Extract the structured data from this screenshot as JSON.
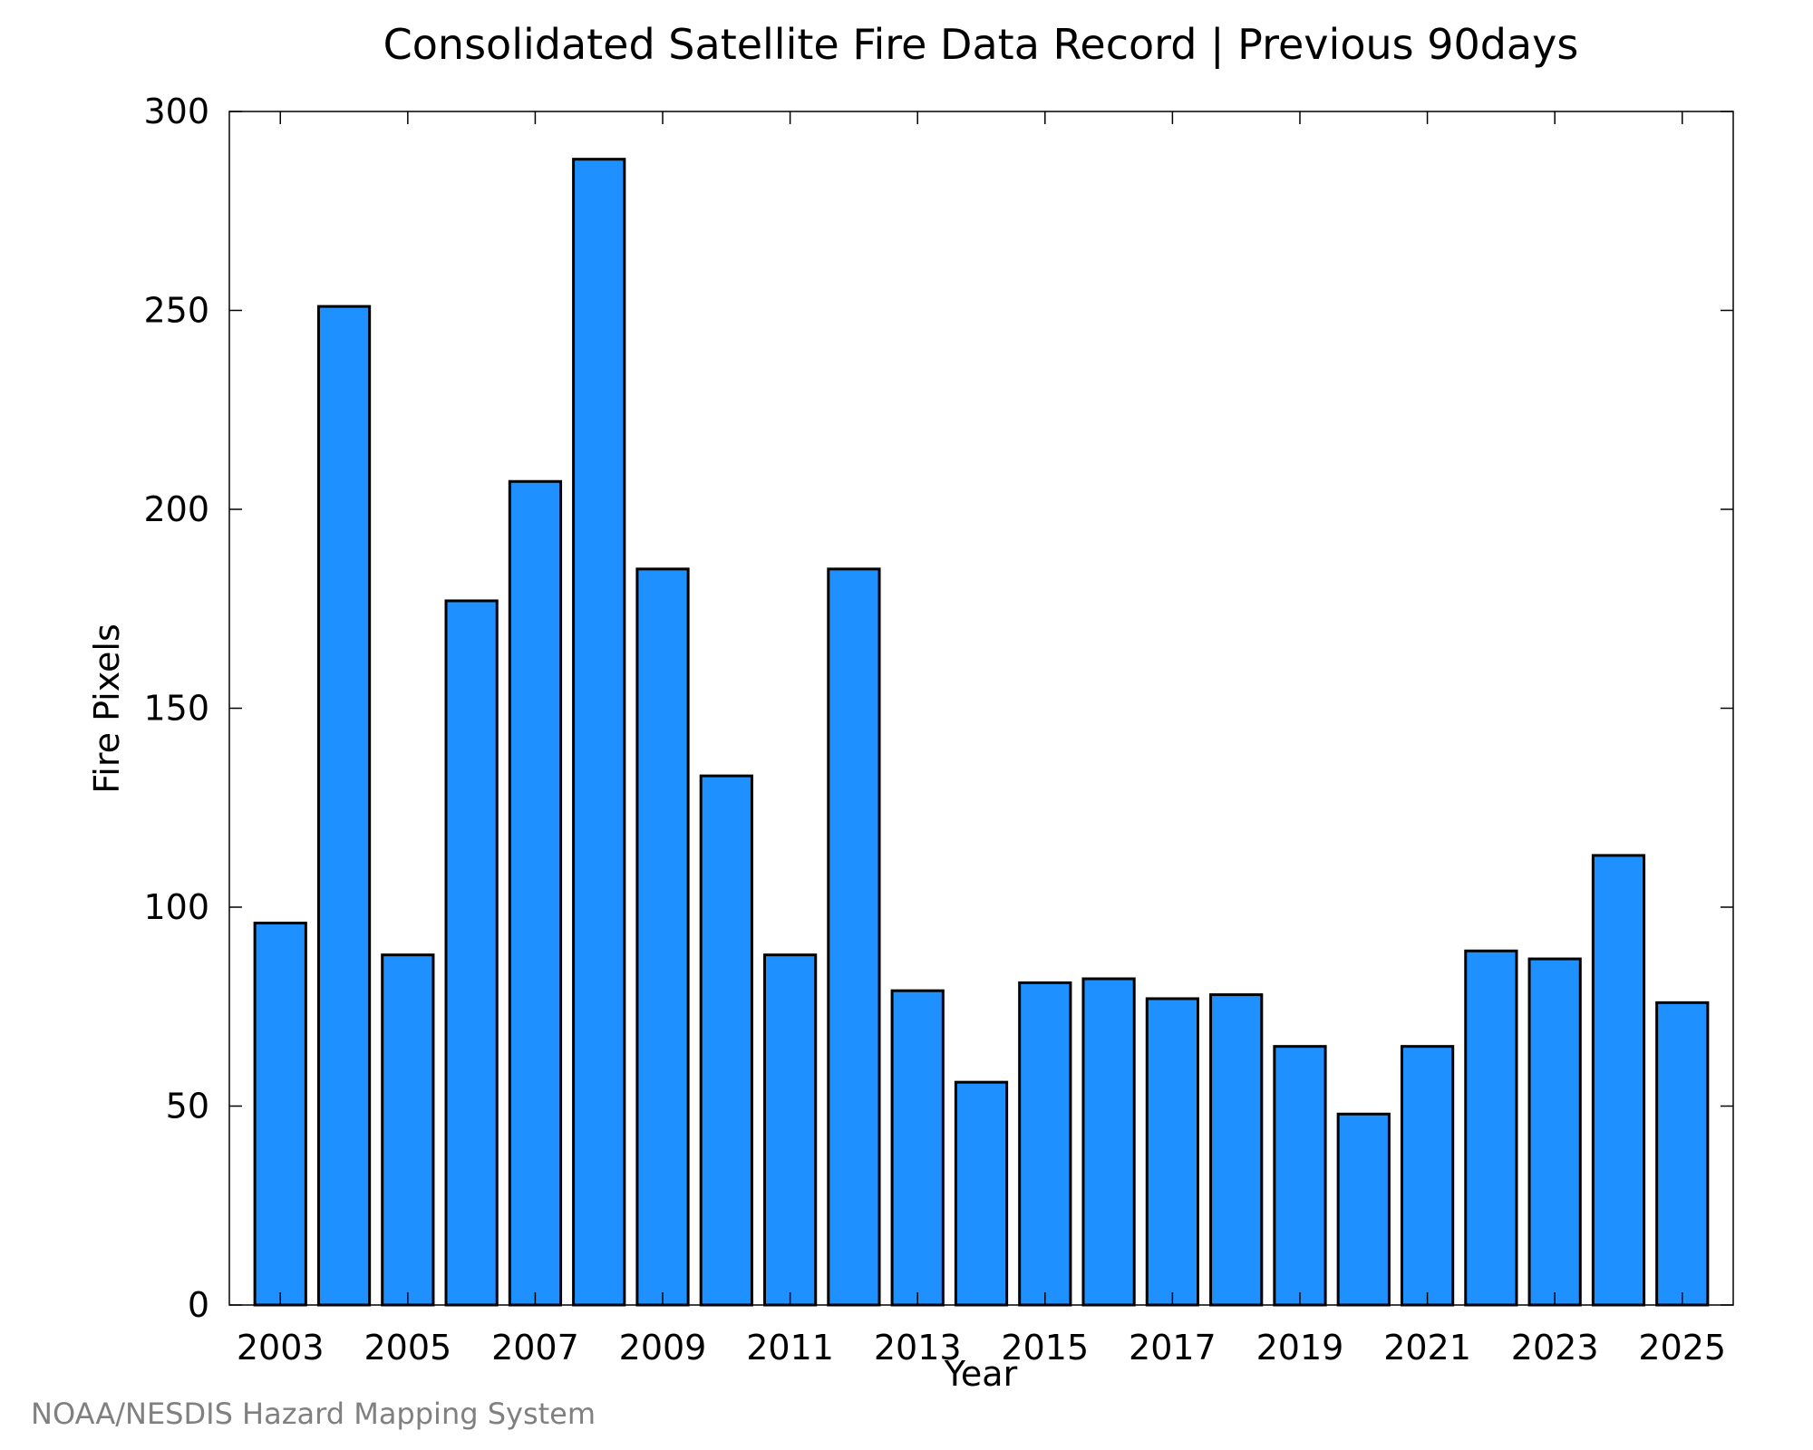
{
  "chart_data": {
    "type": "bar",
    "title": "Consolidated Satellite Fire Data Record | Previous 90days",
    "xlabel": "Year",
    "ylabel": "Fire Pixels",
    "ylim": [
      0,
      300
    ],
    "xlim": [
      2002.2,
      2025.8
    ],
    "yticks": [
      "0",
      "50",
      "100",
      "150",
      "200",
      "250",
      "300"
    ],
    "xticks": [
      "2003",
      "2005",
      "2007",
      "2009",
      "2011",
      "2013",
      "2015",
      "2017",
      "2019",
      "2021",
      "2023",
      "2025"
    ],
    "x": [
      2003,
      2004,
      2005,
      2006,
      2007,
      2008,
      2009,
      2010,
      2011,
      2012,
      2013,
      2014,
      2015,
      2016,
      2017,
      2018,
      2019,
      2020,
      2021,
      2022,
      2023,
      2024,
      2025
    ],
    "values": [
      96,
      251,
      88,
      177,
      207,
      288,
      185,
      133,
      88,
      185,
      79,
      56,
      81,
      82,
      77,
      78,
      65,
      48,
      65,
      89,
      87,
      113,
      76
    ],
    "bar_color": "#1e90ff",
    "edge_color": "#000000",
    "grid": false,
    "legend": "none"
  },
  "footer": {
    "credit": "NOAA/NESDIS Hazard Mapping System"
  }
}
